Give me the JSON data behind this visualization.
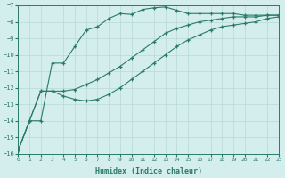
{
  "xlabel": "Humidex (Indice chaleur)",
  "ylabel": "",
  "bg_color": "#d4eeee",
  "grid_color": "#b8d8d8",
  "line_color": "#2a7a6a",
  "xlim": [
    0,
    23
  ],
  "ylim": [
    -16,
    -7
  ],
  "xticks": [
    0,
    1,
    2,
    3,
    4,
    5,
    6,
    7,
    8,
    9,
    10,
    11,
    12,
    13,
    14,
    15,
    16,
    17,
    18,
    19,
    20,
    21,
    22,
    23
  ],
  "yticks": [
    -16,
    -15,
    -14,
    -13,
    -12,
    -11,
    -10,
    -9,
    -8,
    -7
  ],
  "series1_x": [
    0,
    1,
    2,
    3,
    4,
    5,
    6,
    7,
    8,
    9,
    10,
    11,
    12,
    13,
    14,
    15,
    16,
    17,
    18,
    19,
    20,
    21,
    22,
    23
  ],
  "series1_y": [
    -15.8,
    -14.0,
    -14.0,
    -10.5,
    -10.5,
    -9.5,
    -8.5,
    -8.3,
    -7.8,
    -7.5,
    -7.55,
    -7.25,
    -7.15,
    -7.1,
    -7.3,
    -7.5,
    -7.5,
    -7.5,
    -7.5,
    -7.5,
    -7.6,
    -7.6,
    -7.6,
    -7.6
  ],
  "series2_x": [
    0,
    1,
    2,
    3,
    4,
    5,
    6,
    7,
    8,
    9,
    10,
    11,
    12,
    13,
    14,
    15,
    16,
    17,
    18,
    19,
    20,
    21,
    22,
    23
  ],
  "series2_y": [
    -15.8,
    -14.0,
    -12.2,
    -12.2,
    -12.2,
    -12.1,
    -11.8,
    -11.5,
    -11.1,
    -10.7,
    -10.2,
    -9.7,
    -9.2,
    -8.7,
    -8.4,
    -8.2,
    -8.0,
    -7.9,
    -7.8,
    -7.7,
    -7.7,
    -7.7,
    -7.6,
    -7.6
  ],
  "series3_x": [
    0,
    1,
    2,
    3,
    4,
    5,
    6,
    7,
    8,
    9,
    10,
    11,
    12,
    13,
    14,
    15,
    16,
    17,
    18,
    19,
    20,
    21,
    22,
    23
  ],
  "series3_y": [
    -15.8,
    -14.0,
    -12.2,
    -12.2,
    -12.5,
    -12.7,
    -12.8,
    -12.7,
    -12.4,
    -12.0,
    -11.5,
    -11.0,
    -10.5,
    -10.0,
    -9.5,
    -9.1,
    -8.8,
    -8.5,
    -8.3,
    -8.2,
    -8.1,
    -8.0,
    -7.8,
    -7.7
  ]
}
